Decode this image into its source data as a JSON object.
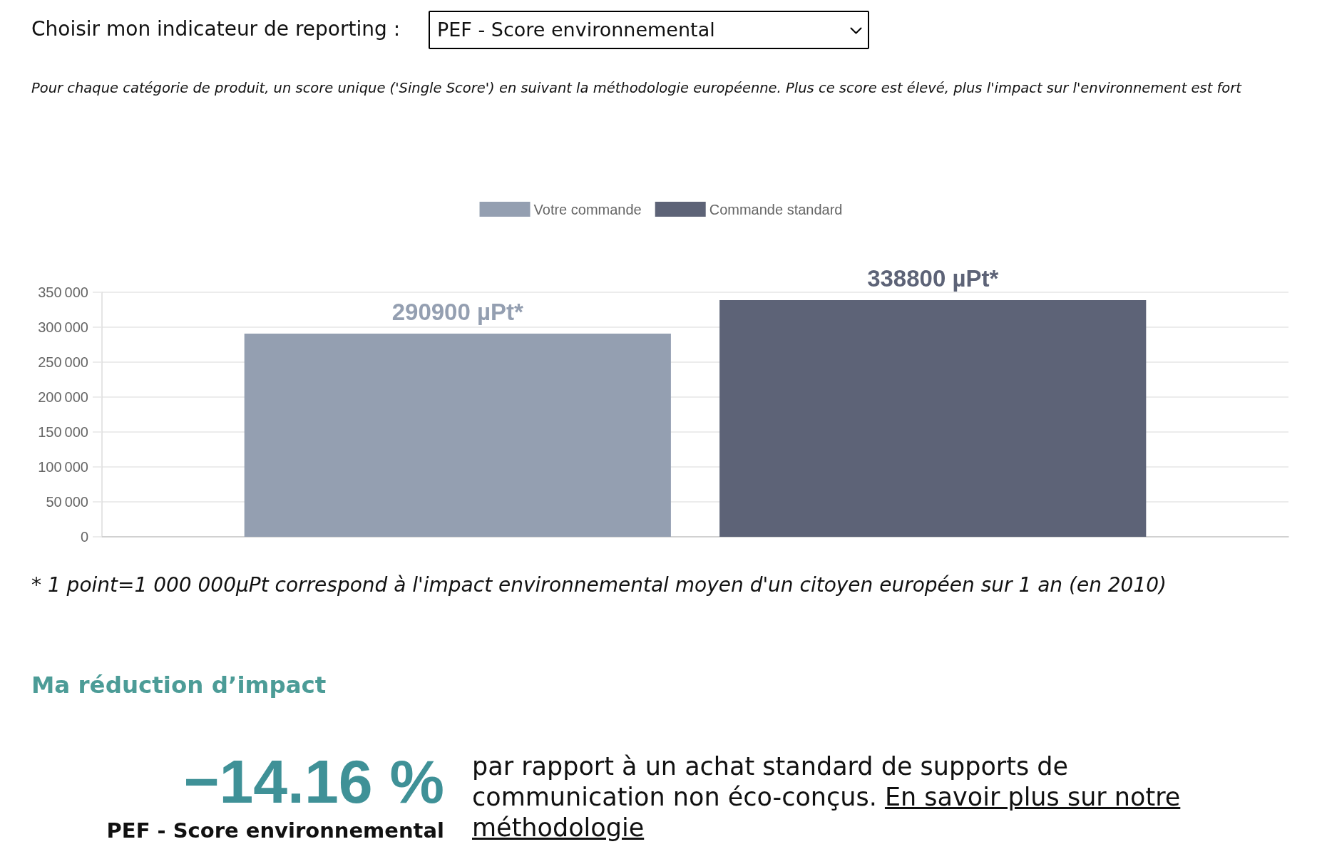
{
  "chart_data": {
    "type": "bar",
    "subtitle": "Pour chaque catégorie de produit, un score unique ('Single Score') en suivant la méthodologie européenne. Plus ce score est élevé, plus l'impact sur l'environnement est fort",
    "categories": [
      null
    ],
    "series": [
      {
        "name": "Votre commande",
        "color": "#949fb1",
        "values": [
          290900
        ],
        "value_labels": [
          "290900 µPt*"
        ]
      },
      {
        "name": "Commande standard",
        "color": "#5d6377",
        "values": [
          338800
        ],
        "value_labels": [
          "338800 µPt*"
        ]
      }
    ],
    "ylim": [
      0,
      350000
    ],
    "yticks": [
      0,
      {
        "value": 50000,
        "label": "50 000"
      },
      {
        "value": 100000,
        "label": "100 000"
      },
      {
        "value": 150000,
        "label": "150 000"
      },
      {
        "value": 200000,
        "label": "200 000"
      },
      {
        "value": 250000,
        "label": "250 000"
      },
      {
        "value": 300000,
        "label": "300 000"
      },
      {
        "value": 350000,
        "label": "350 000"
      }
    ],
    "tick_labels": "y",
    "grid": "y",
    "legend": "top",
    "annotations": [
      "Choisir mon indicateur de reporting :",
      "PEF - Score environnemental",
      "* 1 point=1 000 000µPt correspond à l'impact environnemental moyen d'un citoyen européen sur 1 an (en 2010)",
      "Ma réduction d’impact",
      "−14.16 %",
      "PEF - Score environnemental",
      "par rapport à un achat standard de supports de communication non éco-conçus.",
      "En savoir plus sur notre méthodologie"
    ]
  }
}
